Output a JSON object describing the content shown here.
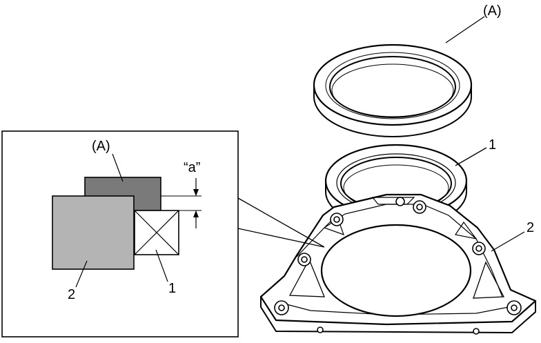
{
  "labels": {
    "ring_a_top": "(A)",
    "seal_1_right": "1",
    "housing_2_right": "2",
    "detail_a": "(A)",
    "detail_gap": "“a”",
    "detail_2": "2",
    "detail_1": "1"
  },
  "colors": {
    "ring_a_fill": "#7a7a7a",
    "housing_fill": "#b4b4b4",
    "line": "#000000",
    "background": "#ffffff"
  }
}
